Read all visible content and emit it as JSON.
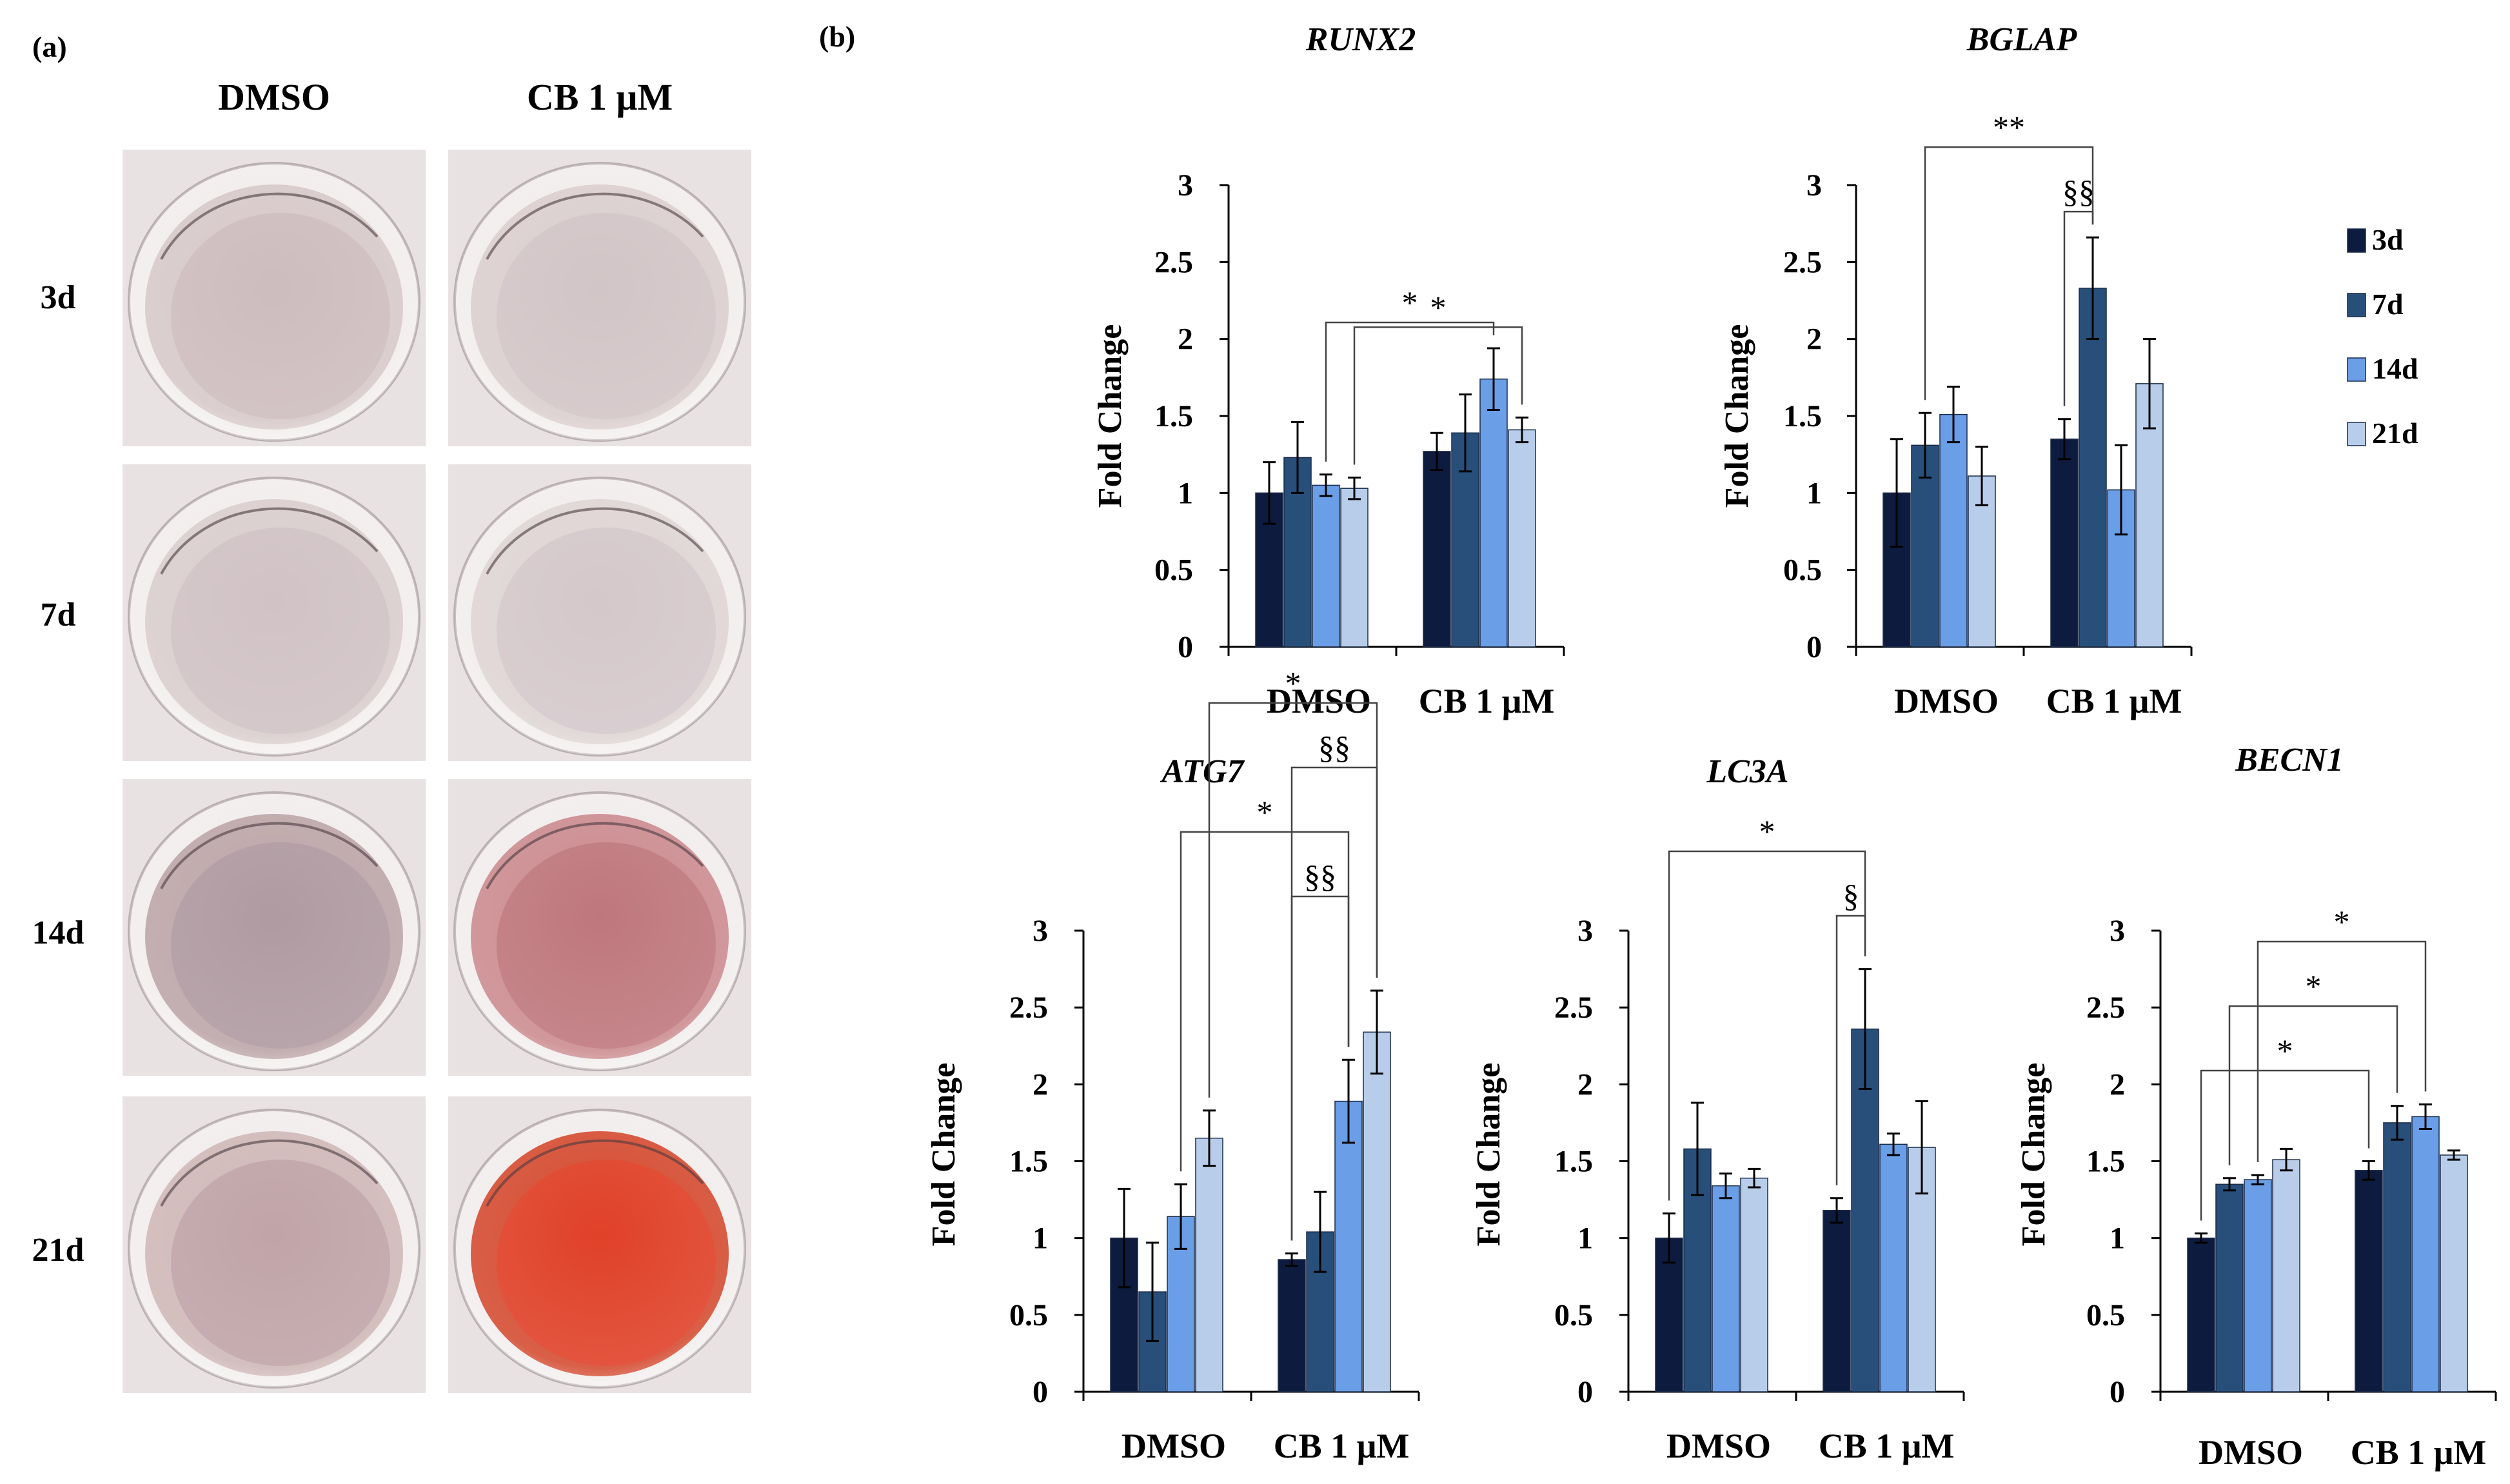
{
  "panel_a": {
    "label": "(a)",
    "col_headers": [
      "DMSO",
      "CB 1 μM"
    ],
    "row_labels": [
      "3d",
      "7d",
      "14d",
      "21d"
    ],
    "wells": [
      {
        "name": "well-dmso-3d",
        "fill": "#d5c6c6",
        "inner": "#c8b5b8"
      },
      {
        "name": "well-cb-3d",
        "fill": "#d9cccc",
        "inner": "#cdbfc2"
      },
      {
        "name": "well-dmso-7d",
        "fill": "#d8cbcb",
        "inner": "#ccbcbf"
      },
      {
        "name": "well-cb-7d",
        "fill": "#ddd2d2",
        "inner": "#d0c2c5"
      },
      {
        "name": "well-dmso-14d",
        "fill": "#b9a1a4",
        "inner": "#a7929a"
      },
      {
        "name": "well-cb-14d",
        "fill": "#c9868a",
        "inner": "#b86a70"
      },
      {
        "name": "well-dmso-21d",
        "fill": "#cdb4b4",
        "inner": "#b99a9f"
      },
      {
        "name": "well-cb-21d",
        "fill": "#d24327",
        "inner": "#e1341c"
      }
    ]
  },
  "panel_b_label": "(b)",
  "legend": {
    "items": [
      {
        "label": "3d",
        "color": "#0d1b3e"
      },
      {
        "label": "7d",
        "color": "#274f7a"
      },
      {
        "label": "14d",
        "color": "#6a9ee6"
      },
      {
        "label": "21d",
        "color": "#b7cdea"
      }
    ]
  },
  "chart_data": [
    {
      "type": "bar",
      "title": "RUNX2",
      "ylabel": "Fold Change",
      "ylim": [
        0,
        3
      ],
      "yticks": [
        "0",
        "0.5",
        "1",
        "1.5",
        "2",
        "2.5",
        "3"
      ],
      "categories": [
        "DMSO",
        "CB 1 μM"
      ],
      "series": [
        {
          "name": "3d",
          "values": [
            1.0,
            1.27
          ],
          "errors": [
            0.2,
            0.12
          ]
        },
        {
          "name": "7d",
          "values": [
            1.23,
            1.39
          ],
          "errors": [
            0.23,
            0.25
          ]
        },
        {
          "name": "14d",
          "values": [
            1.05,
            1.74
          ],
          "errors": [
            0.07,
            0.2
          ]
        },
        {
          "name": "21d",
          "values": [
            1.03,
            1.41
          ],
          "errors": [
            0.07,
            0.08
          ]
        }
      ],
      "annotations": [
        {
          "text": "*",
          "from": [
            0,
            2
          ],
          "to": [
            1,
            2
          ]
        },
        {
          "text": "*",
          "from": [
            0,
            3
          ],
          "to": [
            1,
            3
          ]
        }
      ]
    },
    {
      "type": "bar",
      "title": "BGLAP",
      "ylabel": "Fold Change",
      "ylim": [
        0,
        3
      ],
      "yticks": [
        "0",
        "0.5",
        "1",
        "1.5",
        "2",
        "2.5",
        "3"
      ],
      "categories": [
        "DMSO",
        "CB 1 μM"
      ],
      "series": [
        {
          "name": "3d",
          "values": [
            1.0,
            1.35
          ],
          "errors": [
            0.35,
            0.13
          ]
        },
        {
          "name": "7d",
          "values": [
            1.31,
            2.33
          ],
          "errors": [
            0.21,
            0.33
          ]
        },
        {
          "name": "14d",
          "values": [
            1.51,
            1.02
          ],
          "errors": [
            0.18,
            0.29
          ]
        },
        {
          "name": "21d",
          "values": [
            1.11,
            1.71
          ],
          "errors": [
            0.19,
            0.29
          ]
        }
      ],
      "annotations": [
        {
          "text": "§§",
          "from": [
            1,
            0
          ],
          "to": [
            1,
            1
          ]
        },
        {
          "text": "**",
          "from": [
            0,
            1
          ],
          "to": [
            1,
            1
          ]
        }
      ]
    },
    {
      "type": "bar",
      "title": "ATG7",
      "ylabel": "Fold Change",
      "ylim": [
        0,
        3
      ],
      "yticks": [
        "0",
        "0.5",
        "1",
        "1.5",
        "2",
        "2.5",
        "3"
      ],
      "categories": [
        "DMSO",
        "CB 1 μM"
      ],
      "series": [
        {
          "name": "3d",
          "values": [
            1.0,
            0.86
          ],
          "errors": [
            0.32,
            0.04
          ]
        },
        {
          "name": "7d",
          "values": [
            0.65,
            1.04
          ],
          "errors": [
            0.32,
            0.26
          ]
        },
        {
          "name": "14d",
          "values": [
            1.14,
            1.89
          ],
          "errors": [
            0.21,
            0.27
          ]
        },
        {
          "name": "21d",
          "values": [
            1.65,
            2.34
          ],
          "errors": [
            0.18,
            0.27
          ]
        }
      ],
      "annotations": [
        {
          "text": "§§",
          "from": [
            1,
            0
          ],
          "to": [
            1,
            2
          ]
        },
        {
          "text": "*",
          "from": [
            0,
            2
          ],
          "to": [
            1,
            2
          ]
        },
        {
          "text": "§§",
          "from": [
            1,
            0
          ],
          "to": [
            1,
            3
          ]
        },
        {
          "text": "*",
          "from": [
            0,
            3
          ],
          "to": [
            1,
            3
          ]
        }
      ]
    },
    {
      "type": "bar",
      "title": "LC3A",
      "ylabel": "Fold Change",
      "ylim": [
        0,
        3
      ],
      "yticks": [
        "0",
        "0.5",
        "1",
        "1.5",
        "2",
        "2.5",
        "3"
      ],
      "categories": [
        "DMSO",
        "CB 1 μM"
      ],
      "series": [
        {
          "name": "3d",
          "values": [
            1.0,
            1.18
          ],
          "errors": [
            0.16,
            0.08
          ]
        },
        {
          "name": "7d",
          "values": [
            1.58,
            2.36
          ],
          "errors": [
            0.3,
            0.39
          ]
        },
        {
          "name": "14d",
          "values": [
            1.34,
            1.61
          ],
          "errors": [
            0.08,
            0.07
          ]
        },
        {
          "name": "21d",
          "values": [
            1.39,
            1.59
          ],
          "errors": [
            0.06,
            0.3
          ]
        }
      ],
      "annotations": [
        {
          "text": "§",
          "from": [
            1,
            0
          ],
          "to": [
            1,
            1
          ]
        },
        {
          "text": "*",
          "from": [
            0,
            0
          ],
          "to": [
            1,
            1
          ]
        }
      ]
    },
    {
      "type": "bar",
      "title": "BECN1",
      "ylabel": "Fold Change",
      "ylim": [
        0,
        3
      ],
      "yticks": [
        "0",
        "0.5",
        "1",
        "1.5",
        "2",
        "2.5",
        "3"
      ],
      "categories": [
        "DMSO",
        "CB 1 μM"
      ],
      "series": [
        {
          "name": "3d",
          "values": [
            1.0,
            1.44
          ],
          "errors": [
            0.03,
            0.06
          ]
        },
        {
          "name": "7d",
          "values": [
            1.35,
            1.75
          ],
          "errors": [
            0.04,
            0.11
          ]
        },
        {
          "name": "14d",
          "values": [
            1.38,
            1.79
          ],
          "errors": [
            0.03,
            0.08
          ]
        },
        {
          "name": "21d",
          "values": [
            1.51,
            1.54
          ],
          "errors": [
            0.07,
            0.03
          ]
        }
      ],
      "annotations": [
        {
          "text": "*",
          "from": [
            0,
            0
          ],
          "to": [
            1,
            0
          ]
        },
        {
          "text": "*",
          "from": [
            0,
            1
          ],
          "to": [
            1,
            1
          ]
        },
        {
          "text": "*",
          "from": [
            0,
            2
          ],
          "to": [
            1,
            2
          ]
        }
      ]
    }
  ]
}
